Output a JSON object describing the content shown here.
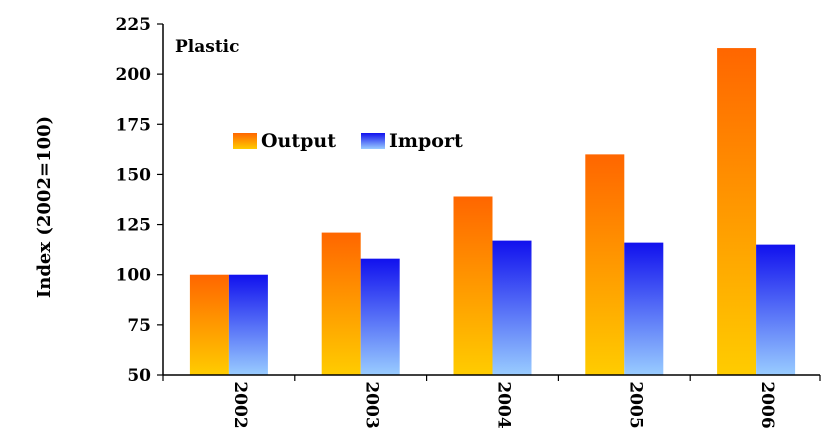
{
  "chart_data": {
    "type": "bar",
    "title": "Plastic",
    "xlabel": "",
    "ylabel": "Index (2002=100)",
    "categories": [
      "2002",
      "2003",
      "2004",
      "2005",
      "2006"
    ],
    "series": [
      {
        "name": "Output",
        "values": [
          100,
          121,
          139,
          160,
          213
        ],
        "color_top": "#ff6600",
        "color_bottom": "#ffcc00"
      },
      {
        "name": "Import",
        "values": [
          100,
          108,
          117,
          116,
          115
        ],
        "color_top": "#1111ee",
        "color_bottom": "#99ccff"
      }
    ],
    "ylim": [
      50,
      225
    ],
    "yticks": [
      "50",
      "75",
      "100",
      "125",
      "150",
      "175",
      "200",
      "225"
    ],
    "grid": false,
    "legend_position": "upper-left, inside plot"
  }
}
